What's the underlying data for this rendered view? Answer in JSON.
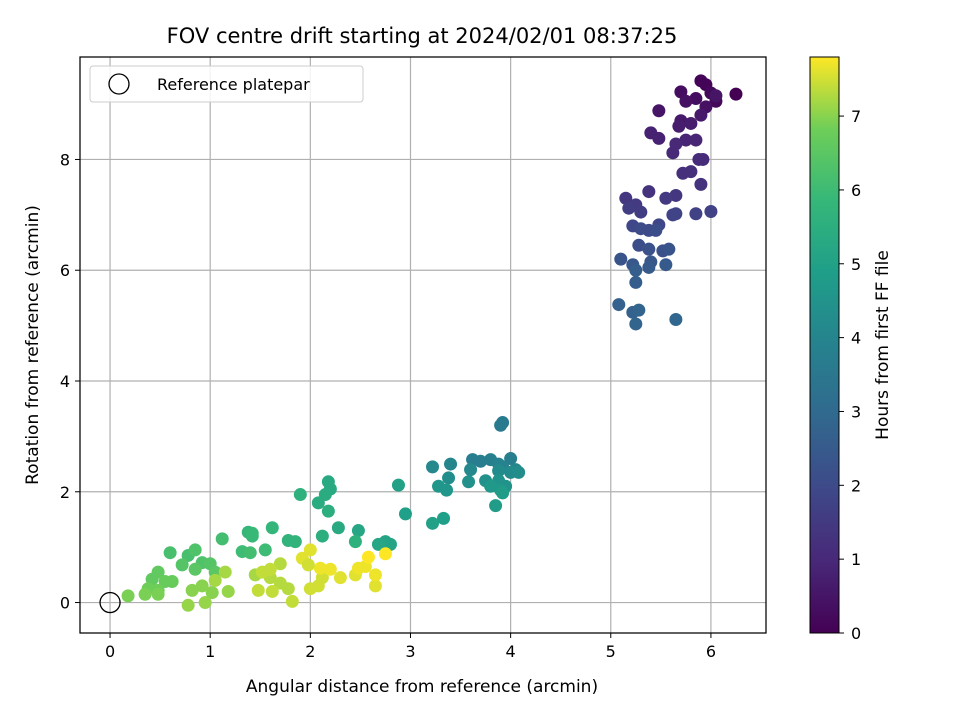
{
  "chart_data": {
    "type": "scatter",
    "title": "FOV centre drift starting at 2024/02/01 08:37:25",
    "xlabel": "Angular distance from reference (arcmin)",
    "ylabel": "Rotation from reference (arcmin)",
    "xlim": [
      -0.3,
      6.55
    ],
    "ylim": [
      -0.55,
      9.85
    ],
    "xticks": [
      0,
      1,
      2,
      3,
      4,
      5,
      6
    ],
    "yticks": [
      0,
      2,
      4,
      6,
      8
    ],
    "grid": true,
    "legend": {
      "placement": "upper-left",
      "entries": [
        "Reference platepar"
      ]
    },
    "reference_point": {
      "x": 0,
      "y": 0,
      "label": "Reference platepar"
    },
    "colorbar": {
      "label": "Hours from first FF file",
      "colormap": "viridis",
      "range": [
        0,
        7.8
      ],
      "ticks": [
        0,
        1,
        2,
        3,
        4,
        5,
        6,
        7
      ]
    },
    "points": [
      {
        "x": 6.25,
        "y": 9.18,
        "c": 0.0
      },
      {
        "x": 5.9,
        "y": 9.42,
        "c": 0.1
      },
      {
        "x": 5.95,
        "y": 9.35,
        "c": 0.1
      },
      {
        "x": 6.0,
        "y": 9.2,
        "c": 0.2
      },
      {
        "x": 6.05,
        "y": 9.05,
        "c": 0.2
      },
      {
        "x": 5.85,
        "y": 9.1,
        "c": 0.3
      },
      {
        "x": 5.7,
        "y": 9.22,
        "c": 0.3
      },
      {
        "x": 5.75,
        "y": 9.05,
        "c": 0.4
      },
      {
        "x": 5.95,
        "y": 8.95,
        "c": 0.4
      },
      {
        "x": 6.05,
        "y": 9.15,
        "c": 0.5
      },
      {
        "x": 5.48,
        "y": 8.88,
        "c": 0.5
      },
      {
        "x": 5.9,
        "y": 8.8,
        "c": 0.6
      },
      {
        "x": 5.7,
        "y": 8.7,
        "c": 0.6
      },
      {
        "x": 5.8,
        "y": 8.65,
        "c": 0.7
      },
      {
        "x": 5.68,
        "y": 8.6,
        "c": 0.7
      },
      {
        "x": 5.4,
        "y": 8.48,
        "c": 0.8
      },
      {
        "x": 5.48,
        "y": 8.38,
        "c": 0.8
      },
      {
        "x": 5.75,
        "y": 8.35,
        "c": 0.9
      },
      {
        "x": 5.85,
        "y": 8.35,
        "c": 0.9
      },
      {
        "x": 5.65,
        "y": 8.28,
        "c": 1.0
      },
      {
        "x": 5.62,
        "y": 8.12,
        "c": 1.0
      },
      {
        "x": 5.88,
        "y": 8.0,
        "c": 1.1
      },
      {
        "x": 5.92,
        "y": 8.0,
        "c": 1.1
      },
      {
        "x": 5.8,
        "y": 7.78,
        "c": 1.2
      },
      {
        "x": 5.72,
        "y": 7.75,
        "c": 1.2
      },
      {
        "x": 5.9,
        "y": 7.55,
        "c": 1.3
      },
      {
        "x": 5.38,
        "y": 7.42,
        "c": 1.3
      },
      {
        "x": 5.15,
        "y": 7.3,
        "c": 1.4
      },
      {
        "x": 5.65,
        "y": 7.35,
        "c": 1.4
      },
      {
        "x": 5.55,
        "y": 7.3,
        "c": 1.5
      },
      {
        "x": 5.25,
        "y": 7.18,
        "c": 1.5
      },
      {
        "x": 5.18,
        "y": 7.12,
        "c": 1.6
      },
      {
        "x": 5.3,
        "y": 7.05,
        "c": 1.6
      },
      {
        "x": 5.85,
        "y": 7.02,
        "c": 1.7
      },
      {
        "x": 6.0,
        "y": 7.06,
        "c": 1.7
      },
      {
        "x": 5.65,
        "y": 7.02,
        "c": 1.8
      },
      {
        "x": 5.62,
        "y": 7.0,
        "c": 1.8
      },
      {
        "x": 5.48,
        "y": 6.82,
        "c": 1.9
      },
      {
        "x": 5.22,
        "y": 6.8,
        "c": 1.9
      },
      {
        "x": 5.3,
        "y": 6.75,
        "c": 2.0
      },
      {
        "x": 5.38,
        "y": 6.72,
        "c": 2.0
      },
      {
        "x": 5.45,
        "y": 6.72,
        "c": 2.1
      },
      {
        "x": 5.28,
        "y": 6.45,
        "c": 2.1
      },
      {
        "x": 5.38,
        "y": 6.38,
        "c": 2.2
      },
      {
        "x": 5.52,
        "y": 6.35,
        "c": 2.2
      },
      {
        "x": 5.58,
        "y": 6.38,
        "c": 2.3
      },
      {
        "x": 5.1,
        "y": 6.2,
        "c": 2.3
      },
      {
        "x": 5.22,
        "y": 6.1,
        "c": 2.4
      },
      {
        "x": 5.4,
        "y": 6.15,
        "c": 2.4
      },
      {
        "x": 5.55,
        "y": 6.1,
        "c": 2.5
      },
      {
        "x": 5.38,
        "y": 6.05,
        "c": 2.5
      },
      {
        "x": 5.25,
        "y": 6.0,
        "c": 2.6
      },
      {
        "x": 5.25,
        "y": 5.78,
        "c": 2.6
      },
      {
        "x": 5.08,
        "y": 5.38,
        "c": 2.7
      },
      {
        "x": 5.22,
        "y": 5.24,
        "c": 2.7
      },
      {
        "x": 5.28,
        "y": 5.28,
        "c": 2.8
      },
      {
        "x": 5.25,
        "y": 5.03,
        "c": 2.8
      },
      {
        "x": 5.65,
        "y": 5.11,
        "c": 2.9
      },
      {
        "x": 3.92,
        "y": 3.25,
        "c": 3.6
      },
      {
        "x": 3.9,
        "y": 3.2,
        "c": 3.6
      },
      {
        "x": 3.7,
        "y": 2.55,
        "c": 3.7
      },
      {
        "x": 3.62,
        "y": 2.58,
        "c": 3.7
      },
      {
        "x": 3.8,
        "y": 2.58,
        "c": 3.8
      },
      {
        "x": 4.0,
        "y": 2.6,
        "c": 3.8
      },
      {
        "x": 3.88,
        "y": 2.5,
        "c": 3.9
      },
      {
        "x": 3.92,
        "y": 2.45,
        "c": 3.9
      },
      {
        "x": 4.05,
        "y": 2.4,
        "c": 4.0
      },
      {
        "x": 3.4,
        "y": 2.5,
        "c": 4.0
      },
      {
        "x": 3.22,
        "y": 2.45,
        "c": 4.1
      },
      {
        "x": 3.6,
        "y": 2.4,
        "c": 4.1
      },
      {
        "x": 3.88,
        "y": 2.38,
        "c": 4.2
      },
      {
        "x": 4.0,
        "y": 2.35,
        "c": 4.2
      },
      {
        "x": 4.08,
        "y": 2.35,
        "c": 4.3
      },
      {
        "x": 3.38,
        "y": 2.25,
        "c": 4.3
      },
      {
        "x": 3.58,
        "y": 2.18,
        "c": 4.4
      },
      {
        "x": 3.75,
        "y": 2.2,
        "c": 4.4
      },
      {
        "x": 3.88,
        "y": 2.2,
        "c": 4.5
      },
      {
        "x": 3.95,
        "y": 2.1,
        "c": 4.5
      },
      {
        "x": 3.28,
        "y": 2.1,
        "c": 4.6
      },
      {
        "x": 3.36,
        "y": 2.03,
        "c": 4.6
      },
      {
        "x": 3.8,
        "y": 2.1,
        "c": 4.7
      },
      {
        "x": 3.9,
        "y": 2.03,
        "c": 4.7
      },
      {
        "x": 3.85,
        "y": 1.75,
        "c": 4.8
      },
      {
        "x": 3.92,
        "y": 1.98,
        "c": 4.8
      },
      {
        "x": 2.95,
        "y": 1.6,
        "c": 4.9
      },
      {
        "x": 3.33,
        "y": 1.52,
        "c": 4.9
      },
      {
        "x": 3.22,
        "y": 1.43,
        "c": 5.0
      },
      {
        "x": 2.88,
        "y": 2.12,
        "c": 5.0
      },
      {
        "x": 2.8,
        "y": 1.05,
        "c": 5.1
      },
      {
        "x": 2.75,
        "y": 1.1,
        "c": 5.1
      },
      {
        "x": 2.68,
        "y": 1.05,
        "c": 5.2
      },
      {
        "x": 2.48,
        "y": 1.3,
        "c": 5.2
      },
      {
        "x": 2.28,
        "y": 1.35,
        "c": 5.3
      },
      {
        "x": 2.18,
        "y": 2.18,
        "c": 5.3
      },
      {
        "x": 2.2,
        "y": 2.05,
        "c": 5.3
      },
      {
        "x": 2.15,
        "y": 1.95,
        "c": 5.4
      },
      {
        "x": 2.08,
        "y": 1.8,
        "c": 5.4
      },
      {
        "x": 2.18,
        "y": 1.65,
        "c": 5.5
      },
      {
        "x": 2.12,
        "y": 1.2,
        "c": 5.5
      },
      {
        "x": 2.45,
        "y": 1.1,
        "c": 5.6
      },
      {
        "x": 1.9,
        "y": 1.95,
        "c": 5.6
      },
      {
        "x": 1.85,
        "y": 1.1,
        "c": 5.7
      },
      {
        "x": 1.78,
        "y": 1.12,
        "c": 5.7
      },
      {
        "x": 1.62,
        "y": 1.35,
        "c": 5.8
      },
      {
        "x": 1.38,
        "y": 1.27,
        "c": 5.8
      },
      {
        "x": 1.42,
        "y": 1.25,
        "c": 5.9
      },
      {
        "x": 1.42,
        "y": 1.2,
        "c": 5.9
      },
      {
        "x": 1.55,
        "y": 0.95,
        "c": 6.0
      },
      {
        "x": 1.32,
        "y": 0.92,
        "c": 6.0
      },
      {
        "x": 1.4,
        "y": 0.9,
        "c": 6.1
      },
      {
        "x": 1.12,
        "y": 1.15,
        "c": 6.1
      },
      {
        "x": 0.6,
        "y": 0.9,
        "c": 6.2
      },
      {
        "x": 0.78,
        "y": 0.85,
        "c": 6.2
      },
      {
        "x": 0.85,
        "y": 0.95,
        "c": 6.3
      },
      {
        "x": 0.92,
        "y": 0.72,
        "c": 6.3
      },
      {
        "x": 1.0,
        "y": 0.7,
        "c": 6.4
      },
      {
        "x": 0.72,
        "y": 0.68,
        "c": 6.4
      },
      {
        "x": 0.85,
        "y": 0.6,
        "c": 6.5
      },
      {
        "x": 1.05,
        "y": 0.55,
        "c": 6.5
      },
      {
        "x": 0.48,
        "y": 0.55,
        "c": 6.6
      },
      {
        "x": 0.42,
        "y": 0.42,
        "c": 6.6
      },
      {
        "x": 0.55,
        "y": 0.38,
        "c": 6.7
      },
      {
        "x": 0.62,
        "y": 0.38,
        "c": 6.7
      },
      {
        "x": 0.38,
        "y": 0.25,
        "c": 6.8
      },
      {
        "x": 0.48,
        "y": 0.22,
        "c": 6.8
      },
      {
        "x": 0.35,
        "y": 0.15,
        "c": 6.9
      },
      {
        "x": 0.48,
        "y": 0.15,
        "c": 6.9
      },
      {
        "x": 0.18,
        "y": 0.12,
        "c": 6.9
      },
      {
        "x": 0.82,
        "y": 0.22,
        "c": 7.0
      },
      {
        "x": 0.92,
        "y": 0.3,
        "c": 7.0
      },
      {
        "x": 1.02,
        "y": 0.18,
        "c": 7.0
      },
      {
        "x": 1.18,
        "y": 0.2,
        "c": 7.1
      },
      {
        "x": 0.95,
        "y": 0.0,
        "c": 7.1
      },
      {
        "x": 0.78,
        "y": -0.05,
        "c": 7.1
      },
      {
        "x": 1.05,
        "y": 0.4,
        "c": 7.2
      },
      {
        "x": 1.15,
        "y": 0.55,
        "c": 7.2
      },
      {
        "x": 1.45,
        "y": 0.5,
        "c": 7.2
      },
      {
        "x": 1.6,
        "y": 0.45,
        "c": 7.3
      },
      {
        "x": 1.7,
        "y": 0.35,
        "c": 7.3
      },
      {
        "x": 1.78,
        "y": 0.25,
        "c": 7.3
      },
      {
        "x": 1.82,
        "y": 0.02,
        "c": 7.4
      },
      {
        "x": 1.62,
        "y": 0.2,
        "c": 7.4
      },
      {
        "x": 1.48,
        "y": 0.22,
        "c": 7.4
      },
      {
        "x": 2.0,
        "y": 0.25,
        "c": 7.5
      },
      {
        "x": 2.08,
        "y": 0.3,
        "c": 7.5
      },
      {
        "x": 2.12,
        "y": 0.45,
        "c": 7.5
      },
      {
        "x": 2.3,
        "y": 0.45,
        "c": 7.6
      },
      {
        "x": 2.45,
        "y": 0.5,
        "c": 7.6
      },
      {
        "x": 2.65,
        "y": 0.3,
        "c": 7.6
      },
      {
        "x": 2.65,
        "y": 0.5,
        "c": 7.7
      },
      {
        "x": 2.55,
        "y": 0.65,
        "c": 7.7
      },
      {
        "x": 2.48,
        "y": 0.62,
        "c": 7.7
      },
      {
        "x": 2.75,
        "y": 0.88,
        "c": 7.8
      },
      {
        "x": 2.58,
        "y": 0.82,
        "c": 7.8
      },
      {
        "x": 2.0,
        "y": 0.95,
        "c": 7.6
      },
      {
        "x": 1.92,
        "y": 0.8,
        "c": 7.6
      },
      {
        "x": 2.1,
        "y": 0.62,
        "c": 7.7
      },
      {
        "x": 2.2,
        "y": 0.6,
        "c": 7.7
      },
      {
        "x": 1.98,
        "y": 0.68,
        "c": 7.5
      },
      {
        "x": 1.7,
        "y": 0.7,
        "c": 7.3
      },
      {
        "x": 1.6,
        "y": 0.6,
        "c": 7.4
      },
      {
        "x": 1.52,
        "y": 0.55,
        "c": 7.4
      }
    ]
  }
}
